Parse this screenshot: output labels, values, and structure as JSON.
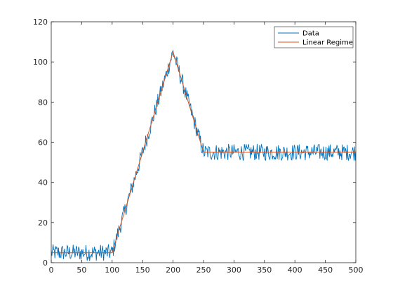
{
  "chart_data": {
    "type": "line",
    "title": "",
    "xlabel": "",
    "ylabel": "",
    "xlim": [
      0,
      500
    ],
    "ylim": [
      0,
      120
    ],
    "xticks": [
      0,
      50,
      100,
      150,
      200,
      250,
      300,
      350,
      400,
      450,
      500
    ],
    "yticks": [
      0,
      20,
      40,
      60,
      80,
      100,
      120
    ],
    "grid": false,
    "legend_position": "top-right",
    "series": [
      {
        "name": "Data",
        "color": "#0072BD",
        "description_of_values": "noisy signal; samples every 1 unit",
        "x_range": [
          0,
          500
        ],
        "noise_amplitude": 3,
        "segments": [
          {
            "x": [
              0,
              100
            ],
            "y": [
              5,
              5
            ]
          },
          {
            "x": [
              100,
              200
            ],
            "y": [
              5,
              105
            ]
          },
          {
            "x": [
              200,
              250
            ],
            "y": [
              105,
              55
            ]
          },
          {
            "x": [
              250,
              500
            ],
            "y": [
              55,
              55
            ]
          }
        ]
      },
      {
        "name": "Linear Regime",
        "color": "#D95319",
        "x": [
          0,
          100,
          200,
          250,
          500
        ],
        "y": [
          5,
          5,
          105,
          55,
          55
        ]
      }
    ]
  }
}
